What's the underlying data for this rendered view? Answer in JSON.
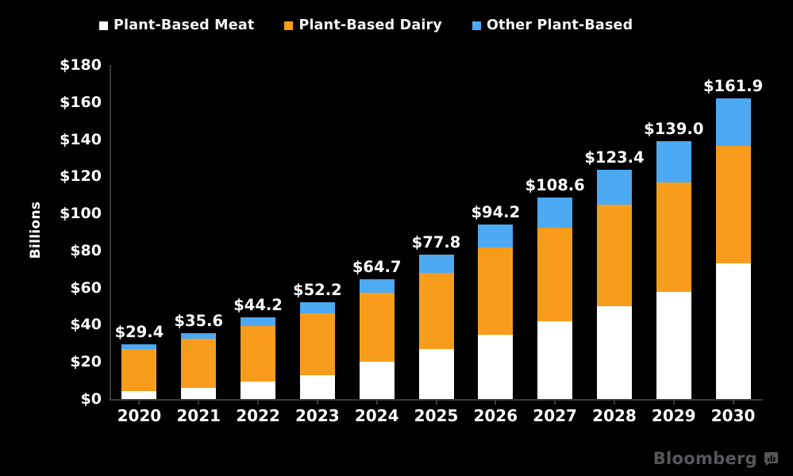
{
  "chart_data": {
    "type": "bar",
    "stacked": true,
    "title": "",
    "categories": [
      "2020",
      "2021",
      "2022",
      "2023",
      "2024",
      "2025",
      "2026",
      "2027",
      "2028",
      "2029",
      "2030"
    ],
    "series": [
      {
        "name": "Plant-Based Meat",
        "color": "#ffffff",
        "values": [
          4.2,
          5.8,
          9.5,
          12.7,
          20.1,
          26.9,
          34.8,
          41.8,
          50.0,
          57.9,
          73.2
        ]
      },
      {
        "name": "Plant-Based Dairy",
        "color": "#f79d1b",
        "values": [
          22.8,
          26.6,
          29.8,
          33.5,
          37.1,
          41.0,
          47.0,
          50.7,
          54.9,
          58.8,
          63.1
        ]
      },
      {
        "name": "Other Plant-Based",
        "color": "#4da9f2",
        "values": [
          2.4,
          3.2,
          4.9,
          6.0,
          7.5,
          9.9,
          12.4,
          16.1,
          18.5,
          22.3,
          25.6
        ]
      }
    ],
    "totals": [
      29.4,
      35.6,
      44.2,
      52.2,
      64.7,
      77.8,
      94.2,
      108.6,
      123.4,
      139.0,
      161.9
    ],
    "total_labels": [
      "$29.4",
      "$35.6",
      "$44.2",
      "$52.2",
      "$64.7",
      "$77.8",
      "$94.2",
      "$108.6",
      "$123.4",
      "$139.0",
      "$161.9"
    ],
    "xlabel": "",
    "ylabel": "Billions",
    "ylim": [
      0,
      180
    ],
    "yticks": [
      0,
      20,
      40,
      60,
      80,
      100,
      120,
      140,
      160,
      180
    ],
    "ytick_labels": [
      "$0",
      "$20",
      "$40",
      "$60",
      "$80",
      "$100",
      "$120",
      "$140",
      "$160",
      "$180"
    ],
    "grid": false,
    "legend_position": "top",
    "background_color": "#000000",
    "axis_color": "#3a3a3a",
    "text_color": "#ffffff"
  },
  "legend": {
    "items": [
      {
        "label": "Plant-Based Meat"
      },
      {
        "label": "Plant-Based Dairy"
      },
      {
        "label": "Other Plant-Based"
      }
    ]
  },
  "branding": {
    "logo_text": "Bloomberg",
    "logo_color": "#55575a"
  }
}
